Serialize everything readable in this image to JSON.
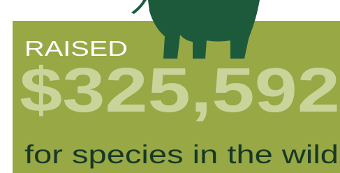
{
  "label": "RAISED",
  "amount": "$325,592",
  "caption": "for species in the wild"
}
